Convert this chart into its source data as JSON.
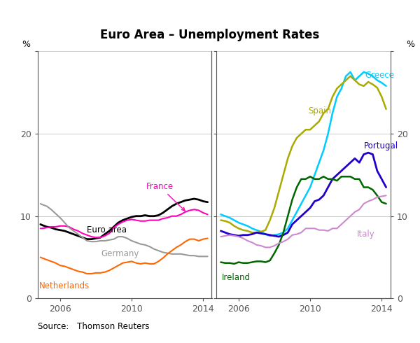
{
  "title": "Euro Area – Unemployment Rates",
  "ylabel_left": "%",
  "ylabel_right": "%",
  "source": "Source: Thomson Reuters",
  "ylim": [
    0,
    30
  ],
  "yticks": [
    0,
    10,
    20,
    30
  ],
  "colors": {
    "Euro area": "#000000",
    "France": "#ff00bb",
    "Germany": "#999999",
    "Netherlands": "#ff6600",
    "Greece": "#00ccff",
    "Spain": "#aaaa00",
    "Portugal": "#2200cc",
    "Italy": "#cc88cc",
    "Ireland": "#006600"
  },
  "linewidths": {
    "Euro area": 2.0,
    "France": 1.5,
    "Germany": 1.5,
    "Netherlands": 1.5,
    "Greece": 1.8,
    "Spain": 1.8,
    "Portugal": 2.0,
    "Italy": 1.5,
    "Ireland": 1.8
  },
  "panel1_series": {
    "Euro area": {
      "x": [
        2004.9,
        2005.0,
        2005.25,
        2005.5,
        2005.75,
        2006.0,
        2006.25,
        2006.5,
        2006.75,
        2007.0,
        2007.25,
        2007.5,
        2007.75,
        2008.0,
        2008.25,
        2008.5,
        2008.75,
        2009.0,
        2009.25,
        2009.5,
        2009.75,
        2010.0,
        2010.25,
        2010.5,
        2010.75,
        2011.0,
        2011.25,
        2011.5,
        2011.75,
        2012.0,
        2012.25,
        2012.5,
        2012.75,
        2013.0,
        2013.25,
        2013.5,
        2013.75,
        2014.0,
        2014.25
      ],
      "y": [
        9.0,
        8.9,
        8.7,
        8.6,
        8.4,
        8.3,
        8.2,
        8.0,
        7.8,
        7.6,
        7.4,
        7.2,
        7.2,
        7.3,
        7.4,
        7.8,
        8.2,
        8.7,
        9.2,
        9.5,
        9.7,
        9.9,
        10.0,
        10.0,
        10.1,
        10.0,
        10.0,
        10.1,
        10.4,
        10.8,
        11.2,
        11.5,
        11.7,
        11.9,
        12.0,
        12.1,
        12.0,
        11.8,
        11.7
      ]
    },
    "France": {
      "x": [
        2004.9,
        2005.0,
        2005.25,
        2005.5,
        2005.75,
        2006.0,
        2006.25,
        2006.5,
        2006.75,
        2007.0,
        2007.25,
        2007.5,
        2007.75,
        2008.0,
        2008.25,
        2008.5,
        2008.75,
        2009.0,
        2009.25,
        2009.5,
        2009.75,
        2010.0,
        2010.25,
        2010.5,
        2010.75,
        2011.0,
        2011.25,
        2011.5,
        2011.75,
        2012.0,
        2012.25,
        2012.5,
        2012.75,
        2013.0,
        2013.25,
        2013.5,
        2013.75,
        2014.0,
        2014.25
      ],
      "y": [
        8.5,
        8.5,
        8.6,
        8.7,
        8.7,
        8.8,
        8.8,
        8.7,
        8.4,
        8.2,
        7.9,
        7.7,
        7.5,
        7.4,
        7.4,
        7.6,
        7.9,
        8.6,
        9.0,
        9.3,
        9.5,
        9.6,
        9.5,
        9.4,
        9.4,
        9.5,
        9.5,
        9.5,
        9.7,
        9.8,
        10.0,
        10.0,
        10.2,
        10.5,
        10.7,
        10.8,
        10.7,
        10.4,
        10.2
      ]
    },
    "Germany": {
      "x": [
        2004.9,
        2005.0,
        2005.25,
        2005.5,
        2005.75,
        2006.0,
        2006.25,
        2006.5,
        2006.75,
        2007.0,
        2007.25,
        2007.5,
        2007.75,
        2008.0,
        2008.25,
        2008.5,
        2008.75,
        2009.0,
        2009.25,
        2009.5,
        2009.75,
        2010.0,
        2010.25,
        2010.5,
        2010.75,
        2011.0,
        2011.25,
        2011.5,
        2011.75,
        2012.0,
        2012.25,
        2012.5,
        2012.75,
        2013.0,
        2013.25,
        2013.5,
        2013.75,
        2014.0,
        2014.25
      ],
      "y": [
        11.5,
        11.4,
        11.2,
        10.8,
        10.3,
        9.8,
        9.2,
        8.6,
        8.2,
        7.8,
        7.4,
        7.0,
        6.9,
        6.9,
        7.0,
        7.0,
        7.1,
        7.2,
        7.5,
        7.5,
        7.3,
        7.0,
        6.8,
        6.6,
        6.5,
        6.3,
        6.0,
        5.8,
        5.6,
        5.5,
        5.4,
        5.4,
        5.4,
        5.3,
        5.2,
        5.2,
        5.1,
        5.1,
        5.1
      ]
    },
    "Netherlands": {
      "x": [
        2004.9,
        2005.0,
        2005.25,
        2005.5,
        2005.75,
        2006.0,
        2006.25,
        2006.5,
        2006.75,
        2007.0,
        2007.25,
        2007.5,
        2007.75,
        2008.0,
        2008.25,
        2008.5,
        2008.75,
        2009.0,
        2009.25,
        2009.5,
        2009.75,
        2010.0,
        2010.25,
        2010.5,
        2010.75,
        2011.0,
        2011.25,
        2011.5,
        2011.75,
        2012.0,
        2012.25,
        2012.5,
        2012.75,
        2013.0,
        2013.25,
        2013.5,
        2013.75,
        2014.0,
        2014.25
      ],
      "y": [
        5.0,
        4.9,
        4.7,
        4.5,
        4.3,
        4.0,
        3.9,
        3.7,
        3.5,
        3.3,
        3.2,
        3.0,
        3.0,
        3.1,
        3.1,
        3.2,
        3.4,
        3.7,
        4.0,
        4.3,
        4.4,
        4.5,
        4.3,
        4.2,
        4.3,
        4.2,
        4.2,
        4.5,
        4.9,
        5.4,
        5.8,
        6.2,
        6.5,
        6.9,
        7.2,
        7.2,
        7.0,
        7.2,
        7.3
      ]
    }
  },
  "panel2_series": {
    "Greece": {
      "x": [
        2005.0,
        2005.25,
        2005.5,
        2005.75,
        2006.0,
        2006.25,
        2006.5,
        2006.75,
        2007.0,
        2007.25,
        2007.5,
        2007.75,
        2008.0,
        2008.25,
        2008.5,
        2008.75,
        2009.0,
        2009.25,
        2009.5,
        2009.75,
        2010.0,
        2010.25,
        2010.5,
        2010.75,
        2011.0,
        2011.25,
        2011.5,
        2011.75,
        2012.0,
        2012.25,
        2012.5,
        2012.75,
        2013.0,
        2013.25,
        2013.5,
        2013.75,
        2014.0,
        2014.25
      ],
      "y": [
        10.2,
        10.0,
        9.8,
        9.5,
        9.2,
        9.0,
        8.8,
        8.5,
        8.3,
        8.1,
        7.8,
        7.6,
        7.7,
        7.8,
        8.0,
        8.5,
        9.5,
        10.5,
        11.5,
        12.5,
        13.5,
        15.0,
        16.5,
        18.0,
        20.0,
        22.5,
        24.5,
        25.5,
        27.0,
        27.5,
        26.5,
        27.0,
        27.5,
        27.3,
        27.0,
        26.5,
        26.2,
        25.8
      ]
    },
    "Spain": {
      "x": [
        2005.0,
        2005.25,
        2005.5,
        2005.75,
        2006.0,
        2006.25,
        2006.5,
        2006.75,
        2007.0,
        2007.25,
        2007.5,
        2007.75,
        2008.0,
        2008.25,
        2008.5,
        2008.75,
        2009.0,
        2009.25,
        2009.5,
        2009.75,
        2010.0,
        2010.25,
        2010.5,
        2010.75,
        2011.0,
        2011.25,
        2011.5,
        2011.75,
        2012.0,
        2012.25,
        2012.5,
        2012.75,
        2013.0,
        2013.25,
        2013.5,
        2013.75,
        2014.0,
        2014.25
      ],
      "y": [
        9.5,
        9.4,
        9.2,
        8.8,
        8.5,
        8.3,
        8.2,
        8.0,
        8.0,
        8.1,
        8.3,
        9.5,
        11.0,
        13.0,
        15.0,
        17.0,
        18.5,
        19.5,
        20.0,
        20.5,
        20.5,
        21.0,
        21.5,
        22.5,
        23.0,
        24.5,
        25.5,
        26.0,
        26.5,
        27.0,
        26.5,
        26.0,
        25.8,
        26.3,
        26.0,
        25.6,
        24.5,
        23.0
      ]
    },
    "Portugal": {
      "x": [
        2005.0,
        2005.25,
        2005.5,
        2005.75,
        2006.0,
        2006.25,
        2006.5,
        2006.75,
        2007.0,
        2007.25,
        2007.5,
        2007.75,
        2008.0,
        2008.25,
        2008.5,
        2008.75,
        2009.0,
        2009.25,
        2009.5,
        2009.75,
        2010.0,
        2010.25,
        2010.5,
        2010.75,
        2011.0,
        2011.25,
        2011.5,
        2011.75,
        2012.0,
        2012.25,
        2012.5,
        2012.75,
        2013.0,
        2013.25,
        2013.5,
        2013.75,
        2014.0,
        2014.25
      ],
      "y": [
        8.2,
        8.0,
        7.8,
        7.7,
        7.6,
        7.7,
        7.7,
        7.8,
        8.0,
        7.9,
        7.8,
        7.7,
        7.6,
        7.5,
        7.7,
        8.0,
        9.0,
        9.5,
        10.0,
        10.5,
        11.0,
        11.8,
        12.0,
        12.5,
        13.5,
        14.5,
        15.0,
        15.5,
        16.0,
        16.5,
        17.0,
        16.5,
        17.5,
        17.7,
        17.5,
        15.5,
        14.5,
        13.5
      ]
    },
    "Ireland": {
      "x": [
        2005.0,
        2005.25,
        2005.5,
        2005.75,
        2006.0,
        2006.25,
        2006.5,
        2006.75,
        2007.0,
        2007.25,
        2007.5,
        2007.75,
        2008.0,
        2008.25,
        2008.5,
        2008.75,
        2009.0,
        2009.25,
        2009.5,
        2009.75,
        2010.0,
        2010.25,
        2010.5,
        2010.75,
        2011.0,
        2011.25,
        2011.5,
        2011.75,
        2012.0,
        2012.25,
        2012.5,
        2012.75,
        2013.0,
        2013.25,
        2013.5,
        2013.75,
        2014.0,
        2014.25
      ],
      "y": [
        4.4,
        4.3,
        4.3,
        4.2,
        4.4,
        4.3,
        4.3,
        4.4,
        4.5,
        4.5,
        4.4,
        4.6,
        5.5,
        6.5,
        8.0,
        10.0,
        12.0,
        13.5,
        14.5,
        14.5,
        14.8,
        14.5,
        14.5,
        14.8,
        14.5,
        14.5,
        14.3,
        14.8,
        14.8,
        14.8,
        14.5,
        14.5,
        13.5,
        13.5,
        13.2,
        12.5,
        11.7,
        11.5
      ]
    },
    "Italy": {
      "x": [
        2005.0,
        2005.25,
        2005.5,
        2005.75,
        2006.0,
        2006.25,
        2006.5,
        2006.75,
        2007.0,
        2007.25,
        2007.5,
        2007.75,
        2008.0,
        2008.25,
        2008.5,
        2008.75,
        2009.0,
        2009.25,
        2009.5,
        2009.75,
        2010.0,
        2010.25,
        2010.5,
        2010.75,
        2011.0,
        2011.25,
        2011.5,
        2011.75,
        2012.0,
        2012.25,
        2012.5,
        2012.75,
        2013.0,
        2013.25,
        2013.5,
        2013.75,
        2014.0,
        2014.25
      ],
      "y": [
        7.5,
        7.6,
        7.7,
        7.6,
        7.5,
        7.3,
        7.0,
        6.8,
        6.5,
        6.4,
        6.2,
        6.2,
        6.4,
        6.7,
        6.9,
        7.2,
        7.7,
        7.8,
        8.0,
        8.5,
        8.5,
        8.5,
        8.3,
        8.3,
        8.2,
        8.5,
        8.5,
        9.0,
        9.5,
        10.0,
        10.5,
        10.8,
        11.5,
        11.8,
        12.0,
        12.3,
        12.4,
        12.5
      ]
    }
  }
}
